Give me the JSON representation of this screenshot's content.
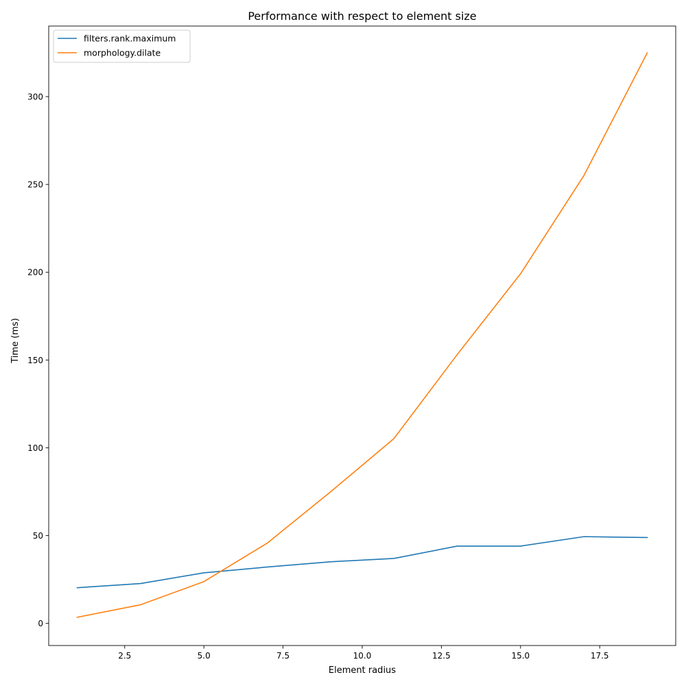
{
  "chart_data": {
    "type": "line",
    "title": "Performance with respect to element size",
    "xlabel": "Element radius",
    "ylabel": "Time (ms)",
    "xlim": [
      0.1,
      19.9
    ],
    "ylim": [
      -12.6,
      340.2
    ],
    "xticks": [
      2.5,
      5.0,
      7.5,
      10.0,
      12.5,
      15.0,
      17.5
    ],
    "xtick_labels": [
      "2.5",
      "5.0",
      "7.5",
      "10.0",
      "12.5",
      "15.0",
      "17.5"
    ],
    "yticks": [
      0,
      50,
      100,
      150,
      200,
      250,
      300
    ],
    "ytick_labels": [
      "0",
      "50",
      "100",
      "150",
      "200",
      "250",
      "300"
    ],
    "grid": false,
    "legend_position": "top-left",
    "x": [
      1,
      3,
      5,
      7,
      9,
      11,
      13,
      15,
      17,
      19
    ],
    "series": [
      {
        "name": "filters.rank.maximum",
        "color": "#1f77b4",
        "values": [
          20.3,
          22.7,
          28.8,
          32.1,
          35.1,
          37.0,
          44.0,
          44.0,
          49.4,
          48.9
        ]
      },
      {
        "name": "morphology.dilate",
        "color": "#ff7f0e",
        "values": [
          3.5,
          10.6,
          23.8,
          45.7,
          74.9,
          105.2,
          153.1,
          199.1,
          255.0,
          324.9
        ]
      }
    ]
  }
}
